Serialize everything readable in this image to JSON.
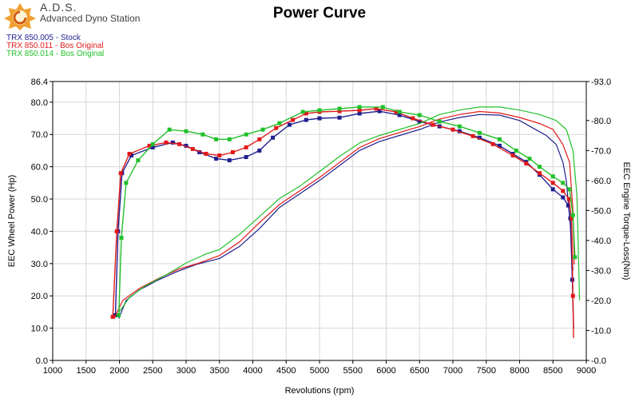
{
  "logo": {
    "name": "A.D.S.",
    "tagline": "Advanced Dyno Station"
  },
  "colors": {
    "stock": "#1f1f8f",
    "bos011": "#e01a1a",
    "bos014": "#22c02a",
    "grid": "#d7d7d7"
  },
  "chart_data": {
    "type": "line",
    "title": "Power Curve",
    "xlabel": "Revolutions (rpm)",
    "ylabel_left": "EEC Wheel Power (Hp)",
    "ylabel_right": "EEC Engine Torque-Loss(Nm)",
    "xlim": [
      1000,
      9000
    ],
    "ylim_left": [
      0,
      86.4
    ],
    "ylim_right": [
      0,
      93
    ],
    "x_ticks": [
      "1000",
      "1500",
      "2000",
      "2500",
      "3000",
      "3500",
      "4000",
      "4500",
      "5000",
      "5500",
      "6000",
      "6500",
      "7000",
      "7500",
      "8000",
      "8500",
      "9000"
    ],
    "y_left_ticks": [
      "0.0",
      "10.0",
      "20.0",
      "30.0",
      "40.0",
      "50.0",
      "60.0",
      "70.0",
      "80.0",
      "86.4"
    ],
    "y_right_ticks": [
      "0.0",
      "10.0",
      "20.0",
      "30.0",
      "40.0",
      "50.0",
      "60.0",
      "70.0",
      "80.0",
      "93.0"
    ],
    "grid": true,
    "legend_position": "top-left",
    "series": [
      {
        "name": "TRX 850.005 - Stock",
        "color_key": "stock",
        "power": [
          [
            1940,
            14
          ],
          [
            1980,
            40
          ],
          [
            2040,
            58
          ],
          [
            2180,
            63.5
          ],
          [
            2500,
            66
          ],
          [
            2800,
            67.5
          ],
          [
            3000,
            66.5
          ],
          [
            3200,
            64.5
          ],
          [
            3450,
            62.5
          ],
          [
            3650,
            62
          ],
          [
            3900,
            63
          ],
          [
            4100,
            65
          ],
          [
            4300,
            69
          ],
          [
            4550,
            73
          ],
          [
            4800,
            74.5
          ],
          [
            5000,
            75
          ],
          [
            5300,
            75.2
          ],
          [
            5600,
            76.5
          ],
          [
            5900,
            77.2
          ],
          [
            6200,
            76
          ],
          [
            6500,
            74
          ],
          [
            6800,
            72.5
          ],
          [
            7100,
            71
          ],
          [
            7400,
            69
          ],
          [
            7700,
            66.5
          ],
          [
            7900,
            64
          ],
          [
            8100,
            61.5
          ],
          [
            8300,
            57.5
          ],
          [
            8500,
            53
          ],
          [
            8650,
            50.5
          ],
          [
            8730,
            48
          ],
          [
            8760,
            44
          ],
          [
            8790,
            25
          ],
          [
            8810,
            10
          ]
        ],
        "torque": [
          [
            1990,
            14
          ],
          [
            2100,
            20
          ],
          [
            2300,
            23.5
          ],
          [
            2550,
            26.5
          ],
          [
            2850,
            29.5
          ],
          [
            3150,
            32
          ],
          [
            3500,
            34
          ],
          [
            3800,
            38
          ],
          [
            4100,
            44
          ],
          [
            4400,
            51
          ],
          [
            4700,
            55.5
          ],
          [
            5000,
            60
          ],
          [
            5300,
            65
          ],
          [
            5600,
            70
          ],
          [
            5900,
            73
          ],
          [
            6200,
            75
          ],
          [
            6500,
            77
          ],
          [
            6800,
            79.5
          ],
          [
            7100,
            81
          ],
          [
            7400,
            82
          ],
          [
            7700,
            81.8
          ],
          [
            8000,
            80
          ],
          [
            8200,
            77.5
          ],
          [
            8400,
            75
          ],
          [
            8550,
            72
          ],
          [
            8650,
            66
          ],
          [
            8700,
            60
          ],
          [
            8760,
            45
          ],
          [
            8800,
            30
          ]
        ]
      },
      {
        "name": "TRX 850.011 - Bos Original",
        "color_key": "bos011",
        "power": [
          [
            1900,
            13.5
          ],
          [
            1960,
            40
          ],
          [
            2020,
            58
          ],
          [
            2150,
            64
          ],
          [
            2450,
            66.5
          ],
          [
            2700,
            67.5
          ],
          [
            2900,
            67
          ],
          [
            3100,
            65.5
          ],
          [
            3300,
            64
          ],
          [
            3500,
            63.5
          ],
          [
            3700,
            64.5
          ],
          [
            3900,
            66
          ],
          [
            4100,
            68.5
          ],
          [
            4350,
            72
          ],
          [
            4600,
            74.5
          ],
          [
            4800,
            76.5
          ],
          [
            5000,
            77
          ],
          [
            5300,
            77.2
          ],
          [
            5600,
            77.5
          ],
          [
            5850,
            78
          ],
          [
            6150,
            77
          ],
          [
            6400,
            75
          ],
          [
            6700,
            73
          ],
          [
            7000,
            71.5
          ],
          [
            7300,
            69.5
          ],
          [
            7600,
            67
          ],
          [
            7900,
            63.5
          ],
          [
            8100,
            61
          ],
          [
            8300,
            58
          ],
          [
            8500,
            55
          ],
          [
            8650,
            52.5
          ],
          [
            8740,
            50
          ],
          [
            8780,
            44
          ],
          [
            8800,
            20
          ],
          [
            8810,
            7
          ]
        ],
        "torque": [
          [
            1920,
            14
          ],
          [
            2050,
            20
          ],
          [
            2300,
            24
          ],
          [
            2600,
            27.5
          ],
          [
            2900,
            30.5
          ],
          [
            3200,
            32.5
          ],
          [
            3500,
            35
          ],
          [
            3800,
            39.5
          ],
          [
            4100,
            46
          ],
          [
            4400,
            52
          ],
          [
            4700,
            56.5
          ],
          [
            5000,
            61
          ],
          [
            5300,
            66
          ],
          [
            5600,
            71
          ],
          [
            5900,
            74
          ],
          [
            6200,
            76
          ],
          [
            6500,
            78
          ],
          [
            6800,
            80.5
          ],
          [
            7100,
            82
          ],
          [
            7400,
            83
          ],
          [
            7700,
            82.5
          ],
          [
            8000,
            81
          ],
          [
            8300,
            79
          ],
          [
            8500,
            77
          ],
          [
            8650,
            72
          ],
          [
            8750,
            66
          ],
          [
            8800,
            50
          ],
          [
            8820,
            32
          ]
        ]
      },
      {
        "name": "TRX 850.014 - Bos Original",
        "color_key": "bos014",
        "power": [
          [
            1990,
            14
          ],
          [
            2030,
            38
          ],
          [
            2100,
            55
          ],
          [
            2280,
            62
          ],
          [
            2500,
            67
          ],
          [
            2750,
            71.5
          ],
          [
            3000,
            71
          ],
          [
            3250,
            70
          ],
          [
            3450,
            68.5
          ],
          [
            3650,
            68.5
          ],
          [
            3900,
            70
          ],
          [
            4150,
            71.5
          ],
          [
            4400,
            73.5
          ],
          [
            4750,
            77
          ],
          [
            5000,
            77.5
          ],
          [
            5300,
            78
          ],
          [
            5600,
            78.5
          ],
          [
            5950,
            78.5
          ],
          [
            6200,
            77
          ],
          [
            6500,
            76
          ],
          [
            6800,
            74
          ],
          [
            7100,
            72.5
          ],
          [
            7400,
            70.5
          ],
          [
            7700,
            68.5
          ],
          [
            7950,
            65
          ],
          [
            8150,
            62.5
          ],
          [
            8300,
            60
          ],
          [
            8500,
            57
          ],
          [
            8650,
            55
          ],
          [
            8750,
            53
          ],
          [
            8800,
            45
          ],
          [
            8830,
            32
          ]
        ],
        "torque": [
          [
            1990,
            16
          ],
          [
            2150,
            21
          ],
          [
            2400,
            25
          ],
          [
            2700,
            28.5
          ],
          [
            3000,
            32.5
          ],
          [
            3300,
            35.5
          ],
          [
            3500,
            37
          ],
          [
            3800,
            42
          ],
          [
            4100,
            48
          ],
          [
            4400,
            54
          ],
          [
            4700,
            58
          ],
          [
            5000,
            63
          ],
          [
            5300,
            68
          ],
          [
            5600,
            72.5
          ],
          [
            5900,
            75
          ],
          [
            6200,
            77
          ],
          [
            6500,
            79
          ],
          [
            6800,
            82
          ],
          [
            7100,
            83.5
          ],
          [
            7400,
            84.5
          ],
          [
            7700,
            84.5
          ],
          [
            8000,
            83.5
          ],
          [
            8300,
            82
          ],
          [
            8550,
            80
          ],
          [
            8700,
            77
          ],
          [
            8800,
            70
          ],
          [
            8860,
            55
          ],
          [
            8900,
            20
          ]
        ]
      }
    ]
  }
}
